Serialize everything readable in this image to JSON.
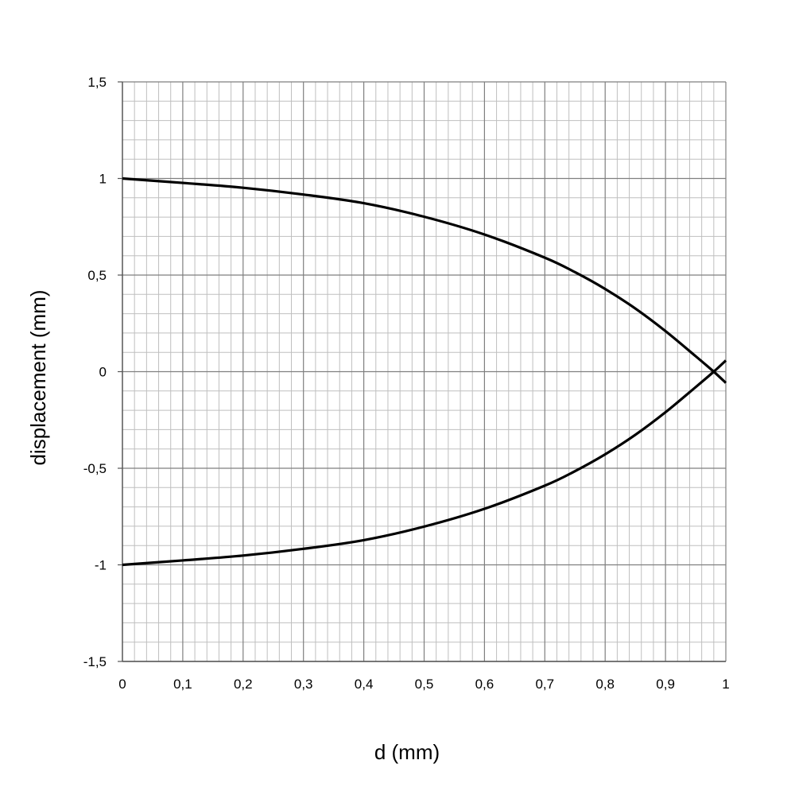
{
  "chart_data": {
    "type": "line",
    "title": "",
    "xlabel": "d (mm)",
    "ylabel": "displacement (mm)",
    "xlim": [
      0,
      1
    ],
    "ylim": [
      -1.5,
      1.5
    ],
    "x_ticks": [
      0,
      0.1,
      0.2,
      0.3,
      0.4,
      0.5,
      0.6,
      0.7,
      0.8,
      0.9,
      1
    ],
    "x_tick_labels": [
      "0",
      "0,1",
      "0,2",
      "0,3",
      "0,4",
      "0,5",
      "0,6",
      "0,7",
      "0,8",
      "0,9",
      "1"
    ],
    "y_ticks": [
      1.5,
      1,
      0.5,
      0,
      -0.5,
      -1,
      -1.5
    ],
    "y_tick_labels": [
      "1,5",
      "1",
      "0,5",
      "0",
      "-0,5",
      "-1",
      "-1,5"
    ],
    "grid": true,
    "minor_grid": true,
    "legend": "none",
    "line_color": "#000000",
    "series": [
      {
        "x": [
          0,
          0.1,
          0.2,
          0.3,
          0.4,
          0.5,
          0.6,
          0.7,
          0.75,
          0.8,
          0.85,
          0.9,
          0.95,
          0.98,
          1
        ],
        "values": [
          1,
          0.977,
          0.952,
          0.917,
          0.872,
          0.802,
          0.71,
          0.59,
          0.515,
          0.428,
          0.327,
          0.21,
          0.08,
          0,
          -0.058
        ]
      },
      {
        "x": [
          0,
          0.1,
          0.2,
          0.3,
          0.4,
          0.5,
          0.6,
          0.7,
          0.75,
          0.8,
          0.85,
          0.9,
          0.95,
          0.98,
          1
        ],
        "values": [
          -1,
          -0.977,
          -0.952,
          -0.917,
          -0.872,
          -0.802,
          -0.71,
          -0.59,
          -0.515,
          -0.428,
          -0.327,
          -0.21,
          -0.08,
          0,
          0.058
        ]
      }
    ]
  }
}
